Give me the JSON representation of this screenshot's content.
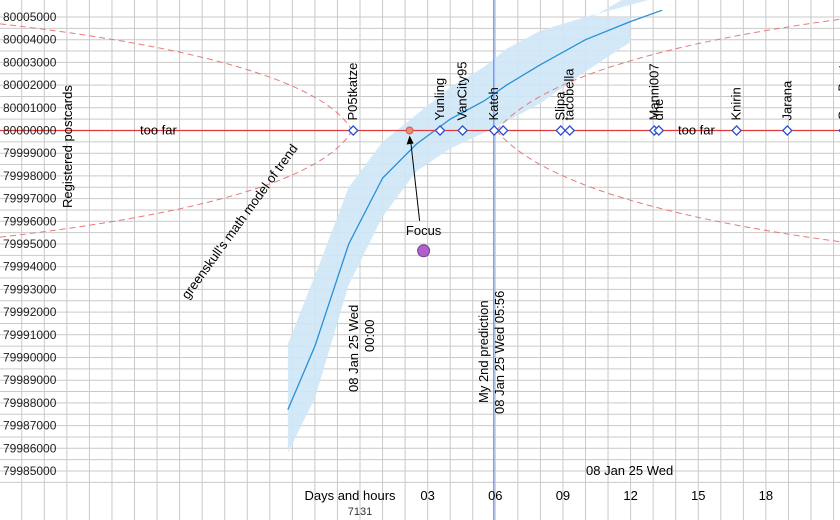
{
  "chart_data": {
    "type": "scatter",
    "ylabel": "Registered postcards",
    "xlabel": "Days and hours",
    "ylim": [
      79984999,
      80005000
    ],
    "xlim": [
      "2025-01-07 20:48",
      "2025-01-08 23:00"
    ],
    "y_ticks": [
      "80005000",
      "80004000",
      "80003000",
      "80002000",
      "80001000",
      "80000000",
      "79999000",
      "79998000",
      "79997000",
      "79996000",
      "79995000",
      "79994000",
      "79993000",
      "79992000",
      "79991000",
      "79990000",
      "79989000",
      "79988000",
      "79987000",
      "79986000",
      "79985000"
    ],
    "x_ticks": [
      "03",
      "06",
      "09",
      "12",
      "15",
      "18"
    ],
    "x_tick_hours": [
      3,
      6,
      9,
      12,
      15,
      18
    ],
    "x_footnote": "7131",
    "grid": true,
    "target_value": 80000000,
    "predictions": [
      {
        "name": "P05tkatze",
        "hour": -0.3
      },
      {
        "name": "Yunling",
        "hour": 3.55
      },
      {
        "name": "VanCity95",
        "hour": 4.55
      },
      {
        "name": "Katch",
        "hour": 5.95
      },
      {
        "name": "",
        "hour": 6.35
      },
      {
        "name": "Slipa",
        "hour": 8.9
      },
      {
        "name": "tacobella",
        "hour": 9.3
      },
      {
        "name": "Manni007",
        "hour": 13.05
      },
      {
        "name": "dhe",
        "hour": 13.25
      },
      {
        "name": "Knirin",
        "hour": 16.7
      },
      {
        "name": "Jarana",
        "hour": 18.95
      },
      {
        "name": "GrauBunt",
        "hour": 21.45
      }
    ],
    "series": [
      {
        "name": "greenskull's math model of trend",
        "kind": "line",
        "color": "#2a8fd6",
        "x_hours": [
          -3.2,
          -2.0,
          -0.5,
          1.0,
          2.5,
          4.0,
          5.5,
          6.5,
          8.0,
          10.0,
          12.0,
          13.4
        ],
        "values": [
          79987700,
          79990500,
          79995000,
          79997900,
          79999400,
          80000500,
          80001300,
          80002000,
          80002900,
          80004000,
          80004800,
          80005300
        ]
      },
      {
        "name": "",
        "kind": "confidence-band",
        "color": "#cfe7f7",
        "x_hours": [
          -3.2,
          -2.0,
          -0.5,
          1.0,
          2.5,
          4.0,
          5.5,
          6.5,
          8.0,
          10.0,
          12.0
        ],
        "upper": [
          79990600,
          79993600,
          79997500,
          79999500,
          80000700,
          80001900,
          80002800,
          80003600,
          80004400,
          80005000,
          80005000
        ],
        "lower": [
          79985800,
          79988200,
          79993200,
          79996200,
          79998200,
          79999200,
          79999900,
          80000400,
          80001200,
          80002600,
          80003900
        ]
      }
    ],
    "boundary_curves": {
      "color": "#e67a7a",
      "vertex_left_hour": -0.35,
      "vertex_right_hour": 6.05,
      "y": 80000000
    },
    "focus": {
      "label": "Focus",
      "hour": 2.2,
      "value": 80000000,
      "marker_value": 79994700
    },
    "prediction_line": {
      "label": "My 2nd prediction",
      "date_label": "08 Jan 25 Wed 05:56",
      "hour": 5.933
    },
    "annotations": {
      "too_far": "too far",
      "date_midnight": "08 Jan 25 Wed",
      "time_midnight": "00:00",
      "date_bottom": "08 Jan 25 Wed",
      "trend_label": "greenskull's math model of trend"
    },
    "colors": {
      "grid": "#c9c9c9",
      "target_line": "#e03a3a",
      "marker": "#2a4fd6",
      "prediction_line": "#6b8ff0"
    }
  }
}
